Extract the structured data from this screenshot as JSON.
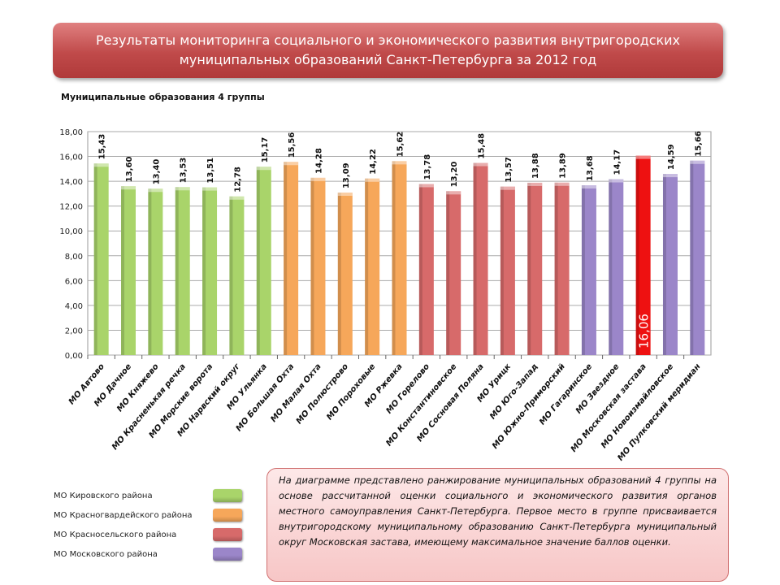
{
  "header": {
    "title_line1": "Результаты мониторинга социального и экономического развития внутригородских",
    "title_line2": "муниципальных образований Санкт-Петербурга за 2012 год"
  },
  "subtitle": "Муниципальные образования 4 группы",
  "chart_data": {
    "type": "bar",
    "ylim": [
      0,
      18
    ],
    "yticks": [
      "0,00",
      "2,00",
      "4,00",
      "6,00",
      "8,00",
      "10,00",
      "12,00",
      "14,00",
      "16,00",
      "18,00"
    ],
    "grid": true,
    "categories": [
      "МО Автово",
      "МО Дачное",
      "МО Княжево",
      "МО Красненькая речка",
      "МО Морские ворота",
      "МО Нарвский округ",
      "МО Ульянка",
      "МО Большая Охта",
      "МО Малая Охта",
      "МО Полюстрово",
      "МО Пороховые",
      "МО Ржевка",
      "МО Горелово",
      "МО Константиновское",
      "МО Сосновая Поляна",
      "МО Урицк",
      "МО Юго-Запад",
      "МО Южно-Приморский",
      "МО Гагаринское",
      "МО Звездное",
      "МО Московская застава",
      "МО Новоизмайловское",
      "МО Пулковский меридиан"
    ],
    "values": [
      15.43,
      13.6,
      13.4,
      13.53,
      13.51,
      12.78,
      15.17,
      15.56,
      14.28,
      13.09,
      14.22,
      15.62,
      13.78,
      13.2,
      15.48,
      13.57,
      13.88,
      13.89,
      13.68,
      14.17,
      16.06,
      14.59,
      15.66
    ],
    "data_labels": [
      "15,43",
      "13,60",
      "13,40",
      "13,53",
      "13,51",
      "12,78",
      "15,17",
      "15,56",
      "14,28",
      "13,09",
      "14,22",
      "15,62",
      "13,78",
      "13,20",
      "15,48",
      "13,57",
      "13,88",
      "13,89",
      "13,68",
      "14,17",
      "16,06",
      "14,59",
      "15,66"
    ],
    "groups": [
      0,
      0,
      0,
      0,
      0,
      0,
      0,
      1,
      1,
      1,
      1,
      1,
      2,
      2,
      2,
      2,
      2,
      2,
      3,
      3,
      4,
      3,
      3
    ],
    "highlight_index": 20,
    "legend": [
      {
        "name": "МО Кировского района",
        "color": "#a9d46a"
      },
      {
        "name": "МО Красногвардейского района",
        "color": "#f6a75a"
      },
      {
        "name": "МО Красносельского района",
        "color": "#d76a6a"
      },
      {
        "name": "МО Московского района",
        "color": "#9b86c9"
      }
    ],
    "highlight_color": "#ee1111",
    "legend_placement": "bottom-left"
  },
  "note": "На диаграмме представлено ранжирование муниципальных образований 4 группы на основе рассчитанной оценки социального и экономического развития органов местного самоуправления Санкт-Петербурга. Первое место в группе присваивается внутригородскому муниципальному образованию Санкт-Петербурга муниципальный округ Московская застава, имеющему максимальное значение баллов оценки."
}
